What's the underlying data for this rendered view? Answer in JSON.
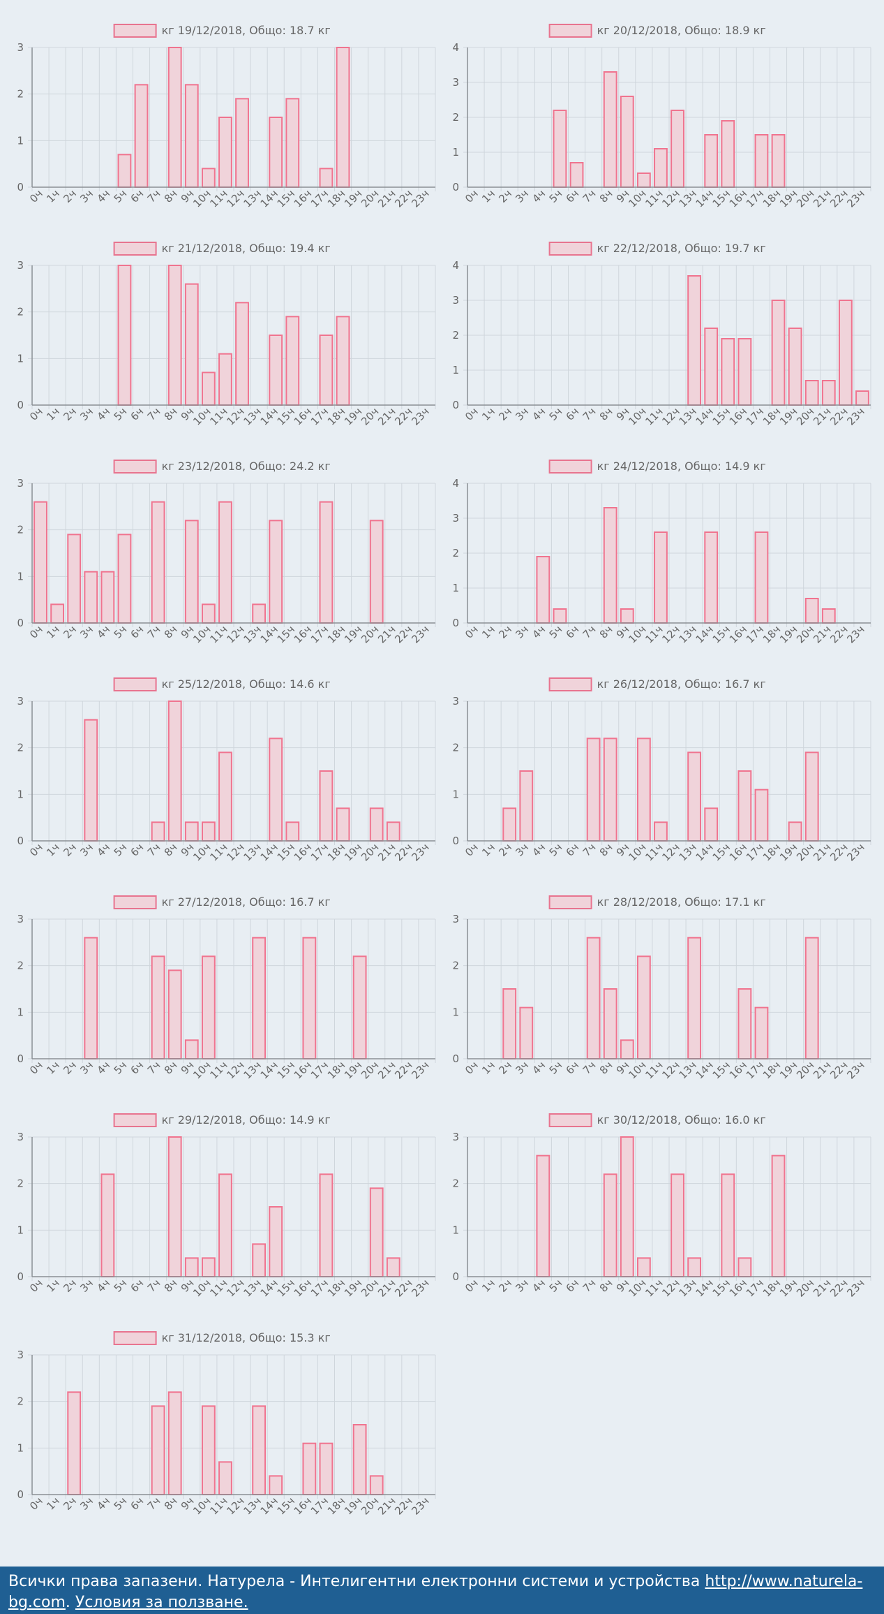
{
  "chart_data": [
    {
      "type": "bar",
      "title": "кг 19/12/2018, Общо: 18.7 кг",
      "legend": "кг 19/12/2018, Общо: 18.7 кг",
      "categories": [
        "0ч",
        "1ч",
        "2ч",
        "3ч",
        "4ч",
        "5ч",
        "6ч",
        "7ч",
        "8ч",
        "9ч",
        "10ч",
        "11ч",
        "12ч",
        "13ч",
        "14ч",
        "15ч",
        "16ч",
        "17ч",
        "18ч",
        "19ч",
        "20ч",
        "21ч",
        "22ч",
        "23ч"
      ],
      "values": [
        0,
        0,
        0,
        0,
        0,
        0.7,
        2.2,
        0,
        3,
        2.2,
        0.4,
        1.5,
        1.9,
        0,
        1.5,
        1.9,
        0,
        0.4,
        3,
        0,
        0,
        0,
        0,
        0
      ],
      "ylim": [
        0,
        3
      ],
      "yticks": [
        0,
        1,
        2,
        3
      ]
    },
    {
      "type": "bar",
      "title": "кг 20/12/2018, Общо: 18.9 кг",
      "legend": "кг 20/12/2018, Общо: 18.9 кг",
      "categories": [
        "0ч",
        "1ч",
        "2ч",
        "3ч",
        "4ч",
        "5ч",
        "6ч",
        "7ч",
        "8ч",
        "9ч",
        "10ч",
        "11ч",
        "12ч",
        "13ч",
        "14ч",
        "15ч",
        "16ч",
        "17ч",
        "18ч",
        "19ч",
        "20ч",
        "21ч",
        "22ч",
        "23ч"
      ],
      "values": [
        0,
        0,
        0,
        0,
        0,
        2.2,
        0.7,
        0,
        3.3,
        2.6,
        0.4,
        1.1,
        2.2,
        0,
        1.5,
        1.9,
        0,
        1.5,
        1.5,
        0,
        0,
        0,
        0,
        0
      ],
      "ylim": [
        0,
        4
      ],
      "yticks": [
        0,
        1,
        2,
        3,
        4
      ]
    },
    {
      "type": "bar",
      "title": "кг 21/12/2018, Общо: 19.4 кг",
      "legend": "кг 21/12/2018, Общо: 19.4 кг",
      "categories": [
        "0ч",
        "1ч",
        "2ч",
        "3ч",
        "4ч",
        "5ч",
        "6ч",
        "7ч",
        "8ч",
        "9ч",
        "10ч",
        "11ч",
        "12ч",
        "13ч",
        "14ч",
        "15ч",
        "16ч",
        "17ч",
        "18ч",
        "19ч",
        "20ч",
        "21ч",
        "22ч",
        "23ч"
      ],
      "values": [
        0,
        0,
        0,
        0,
        0,
        3,
        0,
        0,
        3,
        2.6,
        0.7,
        1.1,
        2.2,
        0,
        1.5,
        1.9,
        0,
        1.5,
        1.9,
        0,
        0,
        0,
        0,
        0
      ],
      "ylim": [
        0,
        3
      ],
      "yticks": [
        0,
        1,
        2,
        3
      ]
    },
    {
      "type": "bar",
      "title": "кг 22/12/2018, Общо: 19.7 кг",
      "legend": "кг 22/12/2018, Общо: 19.7 кг",
      "categories": [
        "0ч",
        "1ч",
        "2ч",
        "3ч",
        "4ч",
        "5ч",
        "6ч",
        "7ч",
        "8ч",
        "9ч",
        "10ч",
        "11ч",
        "12ч",
        "13ч",
        "14ч",
        "15ч",
        "16ч",
        "17ч",
        "18ч",
        "19ч",
        "20ч",
        "21ч",
        "22ч",
        "23ч"
      ],
      "values": [
        0,
        0,
        0,
        0,
        0,
        0,
        0,
        0,
        0,
        0,
        0,
        0,
        0,
        3.7,
        2.2,
        1.9,
        1.9,
        0,
        3,
        2.2,
        0.7,
        0.7,
        3,
        0.4
      ],
      "ylim": [
        0,
        4
      ],
      "yticks": [
        0,
        1,
        2,
        3,
        4
      ]
    },
    {
      "type": "bar",
      "title": "кг 23/12/2018, Общо: 24.2 кг",
      "legend": "кг 23/12/2018, Общо: 24.2 кг",
      "categories": [
        "0ч",
        "1ч",
        "2ч",
        "3ч",
        "4ч",
        "5ч",
        "6ч",
        "7ч",
        "8ч",
        "9ч",
        "10ч",
        "11ч",
        "12ч",
        "13ч",
        "14ч",
        "15ч",
        "16ч",
        "17ч",
        "18ч",
        "19ч",
        "20ч",
        "21ч",
        "22ч",
        "23ч"
      ],
      "values": [
        2.6,
        0.4,
        1.9,
        1.1,
        1.1,
        1.9,
        0,
        2.6,
        0,
        2.2,
        0.4,
        2.6,
        0,
        0.4,
        2.2,
        0,
        0,
        2.6,
        0,
        0,
        2.2,
        0,
        0,
        0
      ],
      "ylim": [
        0,
        3
      ],
      "yticks": [
        0,
        1,
        2,
        3
      ]
    },
    {
      "type": "bar",
      "title": "кг 24/12/2018, Общо: 14.9 кг",
      "legend": "кг 24/12/2018, Общо: 14.9 кг",
      "categories": [
        "0ч",
        "1ч",
        "2ч",
        "3ч",
        "4ч",
        "5ч",
        "6ч",
        "7ч",
        "8ч",
        "9ч",
        "10ч",
        "11ч",
        "12ч",
        "13ч",
        "14ч",
        "15ч",
        "16ч",
        "17ч",
        "18ч",
        "19ч",
        "20ч",
        "21ч",
        "22ч",
        "23ч"
      ],
      "values": [
        0,
        0,
        0,
        0,
        1.9,
        0.4,
        0,
        0,
        3.3,
        0.4,
        0,
        2.6,
        0,
        0,
        2.6,
        0,
        0,
        2.6,
        0,
        0,
        0.7,
        0.4,
        0,
        0
      ],
      "ylim": [
        0,
        4
      ],
      "yticks": [
        0,
        1,
        2,
        3,
        4
      ]
    },
    {
      "type": "bar",
      "title": "кг 25/12/2018, Общо: 14.6 кг",
      "legend": "кг 25/12/2018, Общо: 14.6 кг",
      "categories": [
        "0ч",
        "1ч",
        "2ч",
        "3ч",
        "4ч",
        "5ч",
        "6ч",
        "7ч",
        "8ч",
        "9ч",
        "10ч",
        "11ч",
        "12ч",
        "13ч",
        "14ч",
        "15ч",
        "16ч",
        "17ч",
        "18ч",
        "19ч",
        "20ч",
        "21ч",
        "22ч",
        "23ч"
      ],
      "values": [
        0,
        0,
        0,
        2.6,
        0,
        0,
        0,
        0.4,
        3,
        0.4,
        0.4,
        1.9,
        0,
        0,
        2.2,
        0.4,
        0,
        1.5,
        0.7,
        0,
        0.7,
        0.4,
        0,
        0
      ],
      "ylim": [
        0,
        3
      ],
      "yticks": [
        0,
        1,
        2,
        3
      ]
    },
    {
      "type": "bar",
      "title": "кг 26/12/2018, Общо: 16.7 кг",
      "legend": "кг 26/12/2018, Общо: 16.7 кг",
      "categories": [
        "0ч",
        "1ч",
        "2ч",
        "3ч",
        "4ч",
        "5ч",
        "6ч",
        "7ч",
        "8ч",
        "9ч",
        "10ч",
        "11ч",
        "12ч",
        "13ч",
        "14ч",
        "15ч",
        "16ч",
        "17ч",
        "18ч",
        "19ч",
        "20ч",
        "21ч",
        "22ч",
        "23ч"
      ],
      "values": [
        0,
        0,
        0.7,
        1.5,
        0,
        0,
        0,
        2.2,
        2.2,
        0,
        2.2,
        0.4,
        0,
        1.9,
        0.7,
        0,
        1.5,
        1.1,
        0,
        0.4,
        1.9,
        0,
        0,
        0
      ],
      "ylim": [
        0,
        3
      ],
      "yticks": [
        0,
        1,
        2,
        3
      ]
    },
    {
      "type": "bar",
      "title": "кг 27/12/2018, Общо: 16.7 кг",
      "legend": "кг 27/12/2018, Общо: 16.7 кг",
      "categories": [
        "0ч",
        "1ч",
        "2ч",
        "3ч",
        "4ч",
        "5ч",
        "6ч",
        "7ч",
        "8ч",
        "9ч",
        "10ч",
        "11ч",
        "12ч",
        "13ч",
        "14ч",
        "15ч",
        "16ч",
        "17ч",
        "18ч",
        "19ч",
        "20ч",
        "21ч",
        "22ч",
        "23ч"
      ],
      "values": [
        0,
        0,
        0,
        2.6,
        0,
        0,
        0,
        2.2,
        1.9,
        0.4,
        2.2,
        0,
        0,
        2.6,
        0,
        0,
        2.6,
        0,
        0,
        2.2,
        0,
        0,
        0,
        0
      ],
      "ylim": [
        0,
        3
      ],
      "yticks": [
        0,
        1,
        2,
        3
      ]
    },
    {
      "type": "bar",
      "title": "кг 28/12/2018, Общо: 17.1 кг",
      "legend": "кг 28/12/2018, Общо: 17.1 кг",
      "categories": [
        "0ч",
        "1ч",
        "2ч",
        "3ч",
        "4ч",
        "5ч",
        "6ч",
        "7ч",
        "8ч",
        "9ч",
        "10ч",
        "11ч",
        "12ч",
        "13ч",
        "14ч",
        "15ч",
        "16ч",
        "17ч",
        "18ч",
        "19ч",
        "20ч",
        "21ч",
        "22ч",
        "23ч"
      ],
      "values": [
        0,
        0,
        1.5,
        1.1,
        0,
        0,
        0,
        2.6,
        1.5,
        0.4,
        2.2,
        0,
        0,
        2.6,
        0,
        0,
        1.5,
        1.1,
        0,
        0,
        2.6,
        0,
        0,
        0
      ],
      "ylim": [
        0,
        3
      ],
      "yticks": [
        0,
        1,
        2,
        3
      ]
    },
    {
      "type": "bar",
      "title": "кг 29/12/2018, Общо: 14.9 кг",
      "legend": "кг 29/12/2018, Общо: 14.9 кг",
      "categories": [
        "0ч",
        "1ч",
        "2ч",
        "3ч",
        "4ч",
        "5ч",
        "6ч",
        "7ч",
        "8ч",
        "9ч",
        "10ч",
        "11ч",
        "12ч",
        "13ч",
        "14ч",
        "15ч",
        "16ч",
        "17ч",
        "18ч",
        "19ч",
        "20ч",
        "21ч",
        "22ч",
        "23ч"
      ],
      "values": [
        0,
        0,
        0,
        0,
        2.2,
        0,
        0,
        0,
        3,
        0.4,
        0.4,
        2.2,
        0,
        0.7,
        1.5,
        0,
        0,
        2.2,
        0,
        0,
        1.9,
        0.4,
        0,
        0
      ],
      "ylim": [
        0,
        3
      ],
      "yticks": [
        0,
        1,
        2,
        3
      ]
    },
    {
      "type": "bar",
      "title": "кг 30/12/2018, Общо: 16.0 кг",
      "legend": "кг 30/12/2018, Общо: 16.0 кг",
      "categories": [
        "0ч",
        "1ч",
        "2ч",
        "3ч",
        "4ч",
        "5ч",
        "6ч",
        "7ч",
        "8ч",
        "9ч",
        "10ч",
        "11ч",
        "12ч",
        "13ч",
        "14ч",
        "15ч",
        "16ч",
        "17ч",
        "18ч",
        "19ч",
        "20ч",
        "21ч",
        "22ч",
        "23ч"
      ],
      "values": [
        0,
        0,
        0,
        0,
        2.6,
        0,
        0,
        0,
        2.2,
        3,
        0.4,
        0,
        2.2,
        0.4,
        0,
        2.2,
        0.4,
        0,
        2.6,
        0,
        0,
        0,
        0,
        0
      ],
      "ylim": [
        0,
        3
      ],
      "yticks": [
        0,
        1,
        2,
        3
      ]
    },
    {
      "type": "bar",
      "title": "кг 31/12/2018, Общо: 15.3 кг",
      "legend": "кг 31/12/2018, Общо: 15.3 кг",
      "categories": [
        "0ч",
        "1ч",
        "2ч",
        "3ч",
        "4ч",
        "5ч",
        "6ч",
        "7ч",
        "8ч",
        "9ч",
        "10ч",
        "11ч",
        "12ч",
        "13ч",
        "14ч",
        "15ч",
        "16ч",
        "17ч",
        "18ч",
        "19ч",
        "20ч",
        "21ч",
        "22ч",
        "23ч"
      ],
      "values": [
        0,
        0,
        2.2,
        0,
        0,
        0,
        0,
        1.9,
        2.2,
        0,
        1.9,
        0.7,
        0,
        1.9,
        0.4,
        0,
        1.1,
        1.1,
        0,
        1.5,
        0.4,
        0,
        0,
        0
      ],
      "ylim": [
        0,
        3
      ],
      "yticks": [
        0,
        1,
        2,
        3
      ]
    }
  ],
  "colors": {
    "bar_fill": "#f0d3da",
    "bar_stroke": "#f0748f",
    "footer_bg": "#1f5f93"
  },
  "footer": {
    "text": "Всички права запазени. Натурела - Интелигентни електронни системи и устройства",
    "link": "http://www.naturela-bg.com",
    "after_link": ".",
    "terms": "Условия за ползване."
  }
}
